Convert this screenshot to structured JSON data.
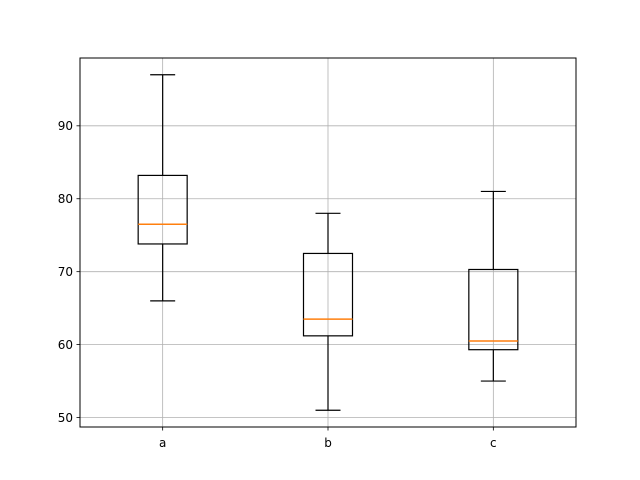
{
  "chart_data": {
    "type": "box",
    "title": "",
    "xlabel": "",
    "ylabel": "",
    "categories": [
      "a",
      "b",
      "c"
    ],
    "boxes": [
      {
        "label": "a",
        "whislo": 66,
        "q1": 73.8,
        "med": 76.5,
        "q3": 83.2,
        "whishi": 97
      },
      {
        "label": "b",
        "whislo": 51,
        "q1": 61.2,
        "med": 63.5,
        "q3": 72.5,
        "whishi": 78
      },
      {
        "label": "c",
        "whislo": 55,
        "q1": 59.3,
        "med": 60.5,
        "q3": 70.3,
        "whishi": 81
      }
    ],
    "yticks": [
      50,
      60,
      70,
      80,
      90
    ],
    "ylim": [
      48.7,
      99.3
    ],
    "grid": true,
    "colors": {
      "box": "#000000",
      "median": "#ff7f0e",
      "grid": "#b0b0b0"
    }
  }
}
